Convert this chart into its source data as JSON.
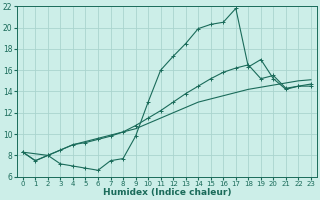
{
  "xlabel": "Humidex (Indice chaleur)",
  "bg_color": "#cceee8",
  "grid_color": "#aad4ce",
  "line_color": "#1a6b5a",
  "xlim": [
    -0.5,
    23.5
  ],
  "ylim": [
    6,
    22
  ],
  "yticks": [
    6,
    8,
    10,
    12,
    14,
    16,
    18,
    20,
    22
  ],
  "xticks": [
    0,
    1,
    2,
    3,
    4,
    5,
    6,
    7,
    8,
    9,
    10,
    11,
    12,
    13,
    14,
    15,
    16,
    17,
    18,
    19,
    20,
    21,
    22,
    23
  ],
  "line1_x": [
    0,
    1,
    2,
    3,
    4,
    5,
    6,
    7,
    8,
    9,
    10,
    11,
    12,
    13,
    14,
    15,
    16,
    17,
    18,
    19,
    20,
    21,
    22,
    23
  ],
  "line1_y": [
    8.3,
    7.5,
    8.0,
    8.5,
    9.0,
    9.3,
    9.6,
    9.9,
    10.2,
    10.5,
    11.0,
    11.5,
    12.0,
    12.5,
    13.0,
    13.3,
    13.6,
    13.9,
    14.2,
    14.4,
    14.6,
    14.8,
    15.0,
    15.1
  ],
  "line2_x": [
    0,
    2,
    3,
    4,
    5,
    6,
    7,
    8,
    9,
    10,
    11,
    12,
    13,
    14,
    15,
    16,
    17,
    18,
    19,
    20,
    21,
    22,
    23
  ],
  "line2_y": [
    8.3,
    8.0,
    8.5,
    9.0,
    9.2,
    9.5,
    9.8,
    10.2,
    10.8,
    11.5,
    12.2,
    13.0,
    13.8,
    14.5,
    15.2,
    15.8,
    16.2,
    16.5,
    15.2,
    15.5,
    14.3,
    14.5,
    14.7
  ],
  "line3_x": [
    0,
    1,
    2,
    3,
    4,
    5,
    6,
    7,
    8,
    9,
    10,
    11,
    12,
    13,
    14,
    15,
    16,
    17,
    18,
    19,
    20,
    21,
    22,
    23
  ],
  "line3_y": [
    8.3,
    7.5,
    8.0,
    7.2,
    7.0,
    6.8,
    6.6,
    7.5,
    7.7,
    9.8,
    13.0,
    16.0,
    17.3,
    18.5,
    19.9,
    20.3,
    20.5,
    21.8,
    16.3,
    17.0,
    15.2,
    14.2,
    14.5,
    14.5
  ]
}
